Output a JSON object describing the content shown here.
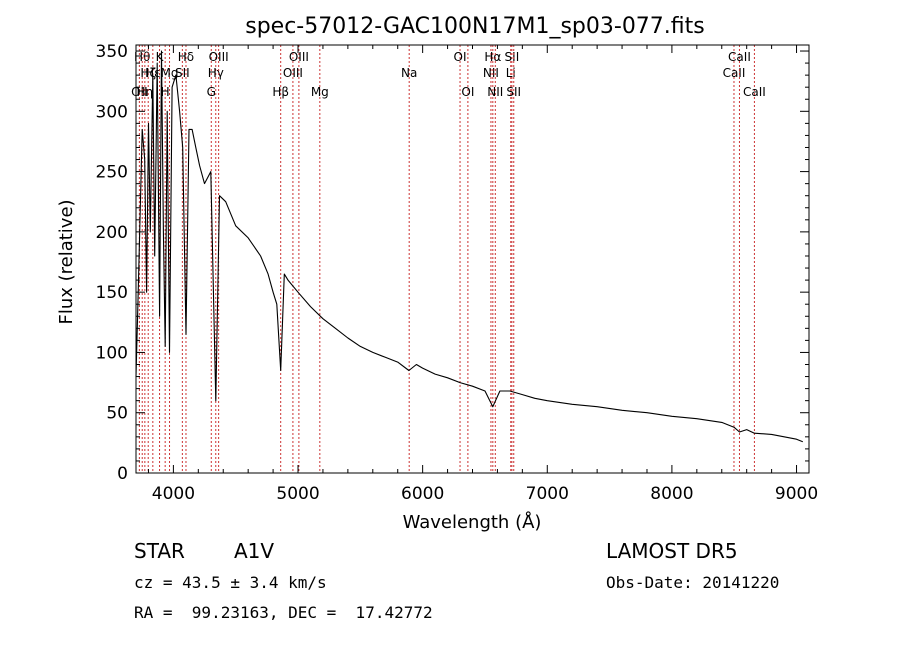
{
  "chart_data": {
    "type": "line",
    "title": "spec-57012-GAC100N17M1_sp03-077.fits",
    "xlabel": "Wavelength (Å)",
    "ylabel": "Flux (relative)",
    "xlim": [
      3700,
      9100
    ],
    "ylim": [
      0,
      355
    ],
    "x_ticks": [
      4000,
      5000,
      6000,
      7000,
      8000,
      9000
    ],
    "y_ticks": [
      0,
      50,
      100,
      150,
      200,
      250,
      300,
      350
    ],
    "grid": false,
    "line_color": "#000000",
    "marker_color": "#cc3333",
    "series": [
      {
        "x": [
          3700,
          3715,
          3730,
          3750,
          3770,
          3785,
          3800,
          3815,
          3835,
          3850,
          3870,
          3889,
          3905,
          3920,
          3934,
          3950,
          3969,
          3990,
          4020,
          4050,
          4075,
          4101,
          4125,
          4150,
          4180,
          4210,
          4250,
          4300,
          4340,
          4370,
          4420,
          4500,
          4600,
          4700,
          4760,
          4800,
          4830,
          4861,
          4890,
          4920,
          5000,
          5100,
          5200,
          5300,
          5400,
          5500,
          5600,
          5700,
          5800,
          5890,
          5950,
          6000,
          6100,
          6200,
          6300,
          6400,
          6500,
          6563,
          6620,
          6700,
          6800,
          6900,
          7000,
          7200,
          7400,
          7600,
          7800,
          8000,
          8200,
          8400,
          8498,
          8542,
          8600,
          8662,
          8800,
          8900,
          9000,
          9050
        ],
        "y": [
          80,
          140,
          200,
          285,
          260,
          150,
          290,
          200,
          330,
          180,
          340,
          130,
          350,
          200,
          105,
          300,
          100,
          320,
          330,
          300,
          270,
          115,
          285,
          285,
          270,
          255,
          240,
          250,
          60,
          230,
          225,
          205,
          195,
          180,
          165,
          150,
          140,
          85,
          165,
          160,
          150,
          138,
          128,
          120,
          112,
          105,
          100,
          96,
          92,
          85,
          90,
          87,
          82,
          79,
          75,
          72,
          68,
          55,
          68,
          68,
          65,
          62,
          60,
          57,
          55,
          52,
          50,
          47,
          45,
          42,
          38,
          34,
          36,
          33,
          32,
          30,
          28,
          26
        ]
      }
    ],
    "line_markers": [
      {
        "x": 3727,
        "label": "OII",
        "row": 3
      },
      {
        "x": 3750,
        "label": "Hθ",
        "row": 1
      },
      {
        "x": 3771,
        "label": "Hη",
        "row": 3
      },
      {
        "x": 3798,
        "label": "Hζ",
        "row": 2
      },
      {
        "x": 3835,
        "label": "Hε",
        "row": 2
      },
      {
        "x": 3889,
        "label": "K",
        "row": 1
      },
      {
        "x": 3934,
        "label": "H",
        "row": 3
      },
      {
        "x": 3969,
        "label": "Mg",
        "row": 2
      },
      {
        "x": 4072,
        "label": "SII",
        "row": 2
      },
      {
        "x": 4101,
        "label": "Hδ",
        "row": 1
      },
      {
        "x": 4304,
        "label": "G",
        "row": 3
      },
      {
        "x": 4340,
        "label": "Hγ",
        "row": 2
      },
      {
        "x": 4363,
        "label": "OIII",
        "row": 1
      },
      {
        "x": 4861,
        "label": "Hβ",
        "row": 3
      },
      {
        "x": 4959,
        "label": "OIII",
        "row": 2
      },
      {
        "x": 5007,
        "label": "OIII",
        "row": 1
      },
      {
        "x": 5175,
        "label": "Mg",
        "row": 3
      },
      {
        "x": 5892,
        "label": "Na",
        "row": 2
      },
      {
        "x": 6300,
        "label": "OI",
        "row": 1
      },
      {
        "x": 6363,
        "label": "OI",
        "row": 3
      },
      {
        "x": 6548,
        "label": "NII",
        "row": 2
      },
      {
        "x": 6563,
        "label": "Hα",
        "row": 1
      },
      {
        "x": 6583,
        "label": "NII",
        "row": 3
      },
      {
        "x": 6707,
        "label": "Li",
        "row": 2
      },
      {
        "x": 6716,
        "label": "SII",
        "row": 1
      },
      {
        "x": 6731,
        "label": "SII",
        "row": 3
      },
      {
        "x": 8498,
        "label": "CaII",
        "row": 2
      },
      {
        "x": 8542,
        "label": "CaII",
        "row": 1
      },
      {
        "x": 8662,
        "label": "CaII",
        "row": 3
      }
    ]
  },
  "footer": {
    "object_class": "STAR",
    "subclass": "A1V",
    "survey": "LAMOST DR5",
    "redshift": "cz = 43.5 ± 3.4 km/s",
    "obs_date": "Obs-Date: 20141220",
    "coords": "RA =  99.23163, DEC =  17.42772"
  }
}
